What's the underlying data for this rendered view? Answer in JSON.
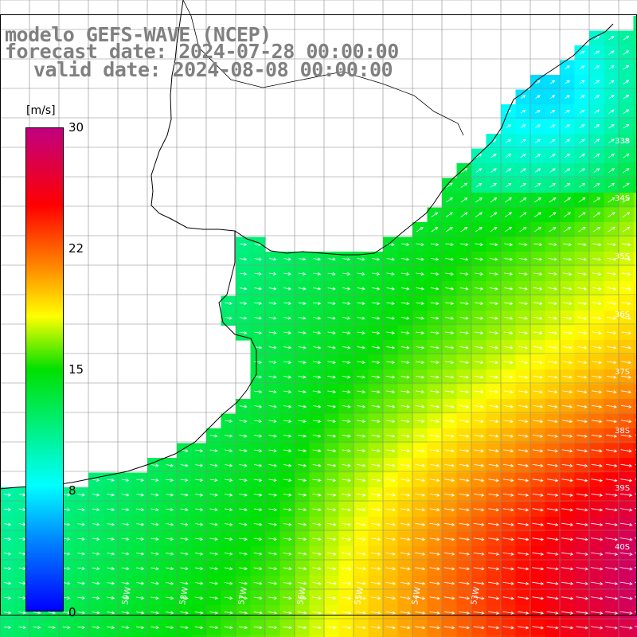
{
  "header": {
    "line1": "modelo GEFS-WAVE (NCEP)",
    "line2": "forecast date: 2024-07-28 00:00:00",
    "line3": "valid date: 2024-08-08 00:00:00"
  },
  "colorbar": {
    "unit_label": "[m/s]",
    "ticks": [
      "30",
      "22",
      "15",
      "8",
      "0"
    ],
    "colors": [
      "#0000ff",
      "#0080ff",
      "#00ffff",
      "#00e000",
      "#ffff00",
      "#ff8000",
      "#ff0000",
      "#c00080"
    ]
  },
  "map": {
    "lat_labels": [
      "33S",
      "34S",
      "35S",
      "36S",
      "37S",
      "38S",
      "39S",
      "40S"
    ],
    "lon_labels": [
      "59W",
      "58W",
      "57W",
      "56W",
      "55W",
      "54W",
      "53W"
    ]
  }
}
